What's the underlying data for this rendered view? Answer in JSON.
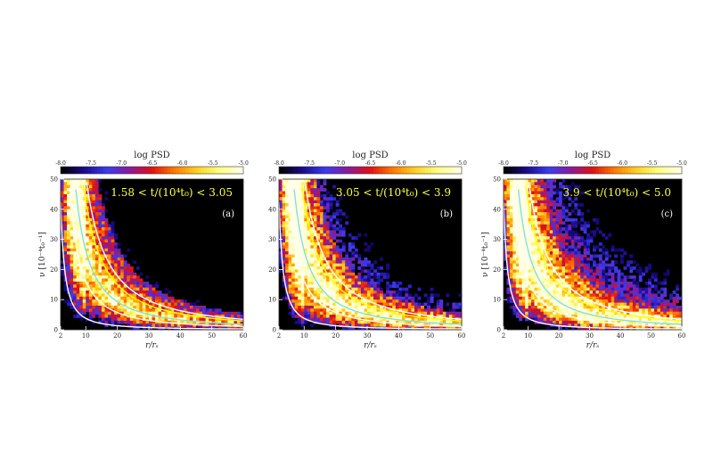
{
  "chart_data": [
    {
      "type": "heatmap",
      "panel_label": "(a)",
      "colorbar": {
        "title": "log PSD",
        "ticks": [
          "-8.0",
          "-7.5",
          "-7.0",
          "-6.5",
          "-6.0",
          "-5.5",
          "-5.0"
        ],
        "range": [
          -8.0,
          -5.0
        ],
        "colormap": [
          "#000000",
          "#1a0a8c",
          "#3a3cf0",
          "#8a1a9a",
          "#e01010",
          "#ff7a00",
          "#ffd020",
          "#ffff80",
          "#ffffe6"
        ]
      },
      "annotation": "1.58 < t/(10⁴t₀) < 3.05",
      "xlabel": "r/rₛ",
      "ylabel": "ν [10⁻⁴t₀⁻¹]",
      "xlim": [
        2,
        60
      ],
      "ylim": [
        0,
        50
      ],
      "xticks": [
        "2",
        "10",
        "20",
        "30",
        "40",
        "50",
        "60"
      ],
      "yticks": [
        "0",
        "10",
        "20",
        "30",
        "40",
        "50"
      ],
      "activity": 0.25,
      "curves": [
        {
          "color": "#ffffff",
          "coef": 60
        },
        {
          "color": "#ffffff",
          "coef": 160
        },
        {
          "color": "#80e0e0",
          "coef": 260
        },
        {
          "color": "#ffff00",
          "coef": 420
        },
        {
          "color": "#ffffff",
          "coef": 500
        }
      ]
    },
    {
      "type": "heatmap",
      "panel_label": "(b)",
      "colorbar": {
        "title": "log PSD",
        "ticks": [
          "-8.0",
          "-7.5",
          "-7.0",
          "-6.5",
          "-6.0",
          "-5.5",
          "-5.0"
        ],
        "range": [
          -8.0,
          -5.0
        ],
        "colormap": [
          "#000000",
          "#1a0a8c",
          "#3a3cf0",
          "#8a1a9a",
          "#e01010",
          "#ff7a00",
          "#ffd020",
          "#ffff80",
          "#ffffe6"
        ]
      },
      "annotation": "3.05 < t/(10⁴t₀) < 3.9",
      "xlabel": "r/rₛ",
      "ylabel": "",
      "xlim": [
        2,
        60
      ],
      "ylim": [
        0,
        50
      ],
      "xticks": [
        "2",
        "10",
        "20",
        "30",
        "40",
        "50",
        "60"
      ],
      "yticks": [
        "0",
        "10",
        "20",
        "30",
        "40",
        "50"
      ],
      "activity": 0.55,
      "curves": [
        {
          "color": "#ffffff",
          "coef": 60
        },
        {
          "color": "#ffffff",
          "coef": 160
        },
        {
          "color": "#80e0e0",
          "coef": 260
        },
        {
          "color": "#ffff00",
          "coef": 420
        },
        {
          "color": "#ffffff",
          "coef": 500
        }
      ]
    },
    {
      "type": "heatmap",
      "panel_label": "(c)",
      "colorbar": {
        "title": "log PSD",
        "ticks": [
          "-8.0",
          "-7.5",
          "-7.0",
          "-6.5",
          "-6.0",
          "-5.5",
          "-5.0"
        ],
        "range": [
          -8.0,
          -5.0
        ],
        "colormap": [
          "#000000",
          "#1a0a8c",
          "#3a3cf0",
          "#8a1a9a",
          "#e01010",
          "#ff7a00",
          "#ffd020",
          "#ffff80",
          "#ffffe6"
        ]
      },
      "annotation": "3.9 < t/(10⁴t₀) < 5.0",
      "xlabel": "r/rₛ",
      "ylabel": "ν [10⁻⁴t₀⁻¹]",
      "xlim": [
        2,
        60
      ],
      "ylim": [
        0,
        50
      ],
      "xticks": [
        "2",
        "10",
        "20",
        "30",
        "40",
        "50",
        "60"
      ],
      "yticks": [
        "0",
        "10",
        "20",
        "30",
        "40",
        "50"
      ],
      "activity": 0.75,
      "curves": [
        {
          "color": "#ffffff",
          "coef": 60
        },
        {
          "color": "#ffffff",
          "coef": 160
        },
        {
          "color": "#80e0e0",
          "coef": 260
        },
        {
          "color": "#ffff00",
          "coef": 420
        },
        {
          "color": "#ffffff",
          "coef": 500
        }
      ]
    }
  ]
}
